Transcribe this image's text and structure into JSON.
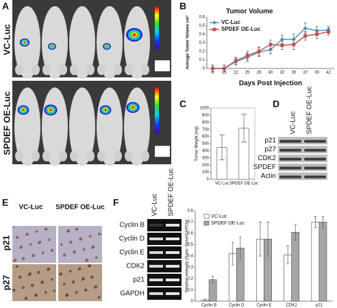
{
  "panels": {
    "A": {
      "letter": "A",
      "rows": [
        "VC-Luc",
        "SPDEF OE-Luc"
      ]
    },
    "B": {
      "letter": "B"
    },
    "C": {
      "letter": "C"
    },
    "D": {
      "letter": "D",
      "columns": [
        "VC-Luc",
        "SPDEF OE-Luc"
      ],
      "rows": [
        "p21",
        "p27",
        "CDK2",
        "SPDEF",
        "Actin"
      ]
    },
    "E": {
      "letter": "E",
      "columns": [
        "VC-Luc",
        "SPDEF OE-Luc"
      ],
      "rows": [
        "p21",
        "p27"
      ]
    },
    "F": {
      "letter": "F",
      "columns": [
        "VC-Luc",
        "SPDEF OE-Luc"
      ],
      "rows": [
        "Cyclin B",
        "Cyclin D",
        "Cyclin E",
        "CDK2",
        "p21",
        "GAPDH"
      ]
    }
  },
  "chart_data": [
    {
      "type": "line",
      "title": "Tumor Volume",
      "x_label": "Days Post Injection",
      "y_label": "Average Tumor Volume cm³",
      "categories": [
        "0",
        "15",
        "22",
        "25",
        "28",
        "30",
        "32",
        "35",
        "37",
        "39",
        "42"
      ],
      "series": [
        {
          "name": "VC-Luc",
          "color": "#4a8fc9",
          "marker": "diamond",
          "values": [
            0,
            0,
            0.08,
            0.13,
            0.19,
            0.22,
            0.34,
            0.34,
            0.47,
            0.44,
            0.45
          ],
          "errors": [
            0.04,
            0.04,
            0.04,
            0.05,
            0.05,
            0.05,
            0.05,
            0.06,
            0.06,
            0.05,
            0.04
          ]
        },
        {
          "name": "SPDEF OE-Luc",
          "color": "#c0504d",
          "marker": "square",
          "values": [
            0,
            0,
            0.09,
            0.15,
            0.2,
            0.28,
            0.27,
            0.28,
            0.38,
            0.4,
            0.43
          ],
          "errors": [
            0.04,
            0.04,
            0.04,
            0.05,
            0.05,
            0.05,
            0.05,
            0.06,
            0.05,
            0.05,
            0.04
          ]
        }
      ],
      "ylim": [
        0,
        0.6
      ],
      "yticks": [
        0,
        0.1,
        0.2,
        0.3,
        0.4,
        0.5,
        0.6
      ],
      "legend": "upper left"
    },
    {
      "type": "bar",
      "y_label": "Tumor Weight (mg)",
      "categories": [
        "VC-Luc",
        "SPDEF OE-Luc"
      ],
      "values": [
        450,
        720
      ],
      "errors": [
        175,
        195
      ],
      "color": "#ffffff",
      "ylim": [
        0,
        1000
      ],
      "yticks": [
        0,
        100,
        200,
        300,
        400,
        500,
        600,
        700,
        800,
        900,
        1000
      ]
    },
    {
      "type": "bar",
      "y_label": "Relative Intensity (Ratio: Gene/GAPDH)",
      "categories": [
        "Cyclin B",
        "Cyclin D",
        "Cyclin E",
        "CDK2",
        "p21"
      ],
      "series": [
        {
          "name": "VC-Luc",
          "color": "#ffffff",
          "values": [
            0.01,
            0.42,
            0.55,
            0.41,
            0.7
          ],
          "errors": [
            0.01,
            0.1,
            0.15,
            0.08,
            0.05
          ]
        },
        {
          "name": "SPDEF OE-Luc",
          "color": "#a6a6a6",
          "values": [
            0.19,
            0.47,
            0.55,
            0.61,
            0.7
          ],
          "errors": [
            0.03,
            0.1,
            0.15,
            0.07,
            0.05
          ]
        }
      ],
      "ylim": [
        0,
        0.8
      ],
      "yticks": [
        0,
        0.1,
        0.2,
        0.3,
        0.4,
        0.5,
        0.6,
        0.7,
        0.8
      ],
      "legend": "upper left"
    }
  ]
}
